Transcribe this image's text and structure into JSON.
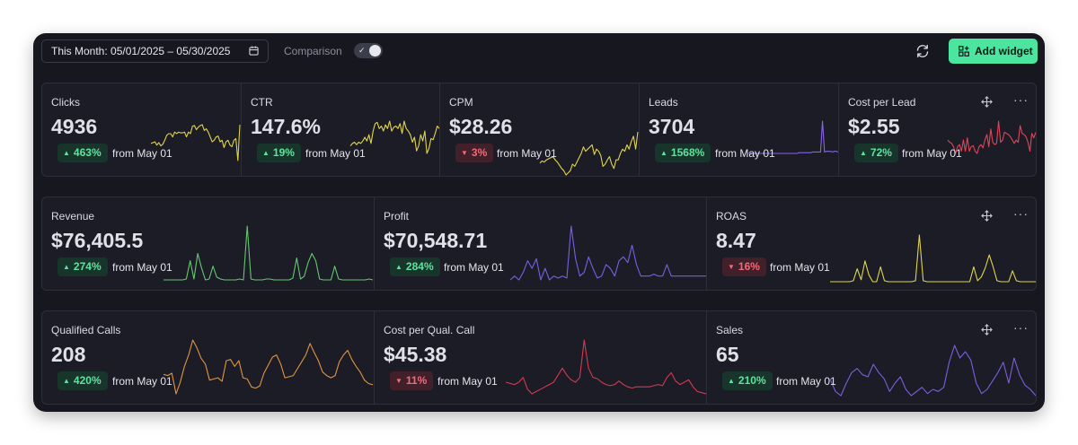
{
  "toolbar": {
    "date_range": "This Month: 05/01/2025 – 05/30/2025",
    "comparison_label": "Comparison",
    "comparison_on": true,
    "add_widget_label": "Add widget"
  },
  "colors": {
    "accent": "#4ce5a0",
    "up": "#5fe39f",
    "down": "#f36a7a",
    "yellow": "#e2d44a",
    "violet": "#8a62e8",
    "red": "#e04457",
    "green": "#63c86c",
    "orange": "#e09540"
  },
  "widgets": [
    {
      "title": "Clicks",
      "value": "4936",
      "change": "463%",
      "direction": "up",
      "from": "from May 01",
      "color": "#e2d44a",
      "series": [
        26,
        27,
        28,
        24,
        27,
        23,
        25,
        30,
        36,
        38,
        38,
        34,
        40,
        38,
        40,
        39,
        39,
        40,
        34,
        40,
        38,
        47,
        48,
        43,
        46,
        48,
        49,
        42,
        44,
        40,
        34,
        28,
        30,
        34,
        35,
        28,
        30,
        21,
        28,
        30,
        24,
        22,
        30,
        32,
        5,
        49
      ]
    },
    {
      "title": "CTR",
      "value": "147.6%",
      "change": "19%",
      "direction": "up",
      "from": "from May 01",
      "color": "#e2d44a",
      "series": [
        26,
        28,
        29,
        27,
        29,
        28,
        30,
        33,
        30,
        35,
        28,
        38,
        44,
        45,
        40,
        42,
        38,
        43,
        40,
        46,
        38,
        41,
        42,
        40,
        44,
        36,
        46,
        40,
        38,
        35,
        29,
        33,
        22,
        26,
        35,
        30,
        38,
        20,
        24,
        32,
        31,
        36,
        42,
        40
      ]
    },
    {
      "title": "CPM",
      "value": "$28.26",
      "change": "3%",
      "direction": "down",
      "from": "from May 01",
      "color": "#e2d44a",
      "series": [
        27,
        29,
        28,
        30,
        31,
        32,
        33,
        30,
        28,
        25,
        22,
        20,
        16,
        18,
        20,
        26,
        24,
        28,
        32,
        36,
        42,
        38,
        40,
        42,
        44,
        35,
        40,
        38,
        34,
        24,
        26,
        30,
        33,
        26,
        22,
        30,
        30,
        36,
        40,
        38,
        44,
        40,
        47,
        52,
        40,
        56
      ]
    },
    {
      "title": "Leads",
      "value": "3704",
      "change": "1568%",
      "direction": "up",
      "from": "from May 01",
      "color": "#8a62e8",
      "series": [
        10,
        10,
        10,
        10,
        10,
        10,
        10,
        10,
        10,
        10,
        10,
        10,
        10,
        10,
        10,
        10,
        10,
        10,
        10,
        10,
        10,
        10,
        10,
        10,
        10,
        10,
        11,
        11,
        11,
        11,
        11,
        11,
        11,
        12,
        12,
        12,
        12,
        12,
        56,
        12,
        13,
        13,
        13,
        12,
        13,
        13,
        12
      ]
    },
    {
      "title": "Cost per Lead",
      "value": "$2.55",
      "change": "72%",
      "direction": "up",
      "from": "from May 01",
      "color": "#e04457",
      "series": [
        40,
        38,
        37,
        34,
        28,
        34,
        36,
        30,
        40,
        30,
        42,
        30,
        34,
        35,
        30,
        28,
        34,
        36,
        33,
        40,
        45,
        34,
        50,
        38,
        36,
        37,
        57,
        38,
        40,
        47,
        46,
        45,
        43,
        40,
        37,
        40,
        38,
        53,
        46,
        45,
        43,
        38,
        30,
        46,
        42,
        47
      ]
    },
    {
      "title": "Revenue",
      "value": "$76,405.5",
      "change": "274%",
      "direction": "up",
      "from": "from May 01",
      "color": "#63c86c",
      "series": [
        1,
        1,
        1,
        1,
        1,
        1,
        2,
        22,
        2,
        30,
        14,
        1,
        2,
        16,
        4,
        2,
        1,
        1,
        1,
        1,
        2,
        1,
        60,
        2,
        1,
        1,
        1,
        2,
        2,
        1,
        1,
        1,
        1,
        1,
        3,
        25,
        2,
        5,
        20,
        30,
        22,
        2,
        1,
        1,
        1,
        16,
        2,
        1,
        1,
        1,
        1,
        1,
        1,
        1,
        2,
        1
      ]
    },
    {
      "title": "Profit",
      "value": "$70,548.71",
      "change": "284%",
      "direction": "up",
      "from": "from May 01",
      "color": "#7a5fe0",
      "series": [
        28,
        30,
        28,
        32,
        38,
        34,
        39,
        28,
        34,
        28,
        30,
        29,
        30,
        29,
        56,
        39,
        30,
        32,
        40,
        34,
        29,
        30,
        36,
        34,
        30,
        38,
        40,
        37,
        46,
        36,
        30,
        30,
        30,
        31,
        30,
        30,
        36,
        30,
        30,
        30,
        30,
        30,
        30,
        30,
        30,
        30
      ]
    },
    {
      "title": "ROAS",
      "value": "8.47",
      "change": "16%",
      "direction": "down",
      "from": "from May 01",
      "color": "#e2d44a",
      "series": [
        1,
        1,
        1,
        1,
        1,
        1,
        2,
        14,
        3,
        22,
        8,
        1,
        1,
        16,
        2,
        1,
        1,
        1,
        1,
        1,
        1,
        1,
        2,
        48,
        2,
        1,
        1,
        1,
        1,
        1,
        1,
        1,
        1,
        1,
        1,
        1,
        1,
        16,
        2,
        6,
        15,
        28,
        16,
        2,
        1,
        1,
        1,
        12,
        2,
        1,
        1,
        1,
        1,
        1
      ]
    },
    {
      "title": "Qualified Calls",
      "value": "208",
      "change": "420%",
      "direction": "up",
      "from": "from May 01",
      "color": "#e09540",
      "series": [
        23,
        22,
        24,
        6,
        16,
        30,
        40,
        53,
        46,
        37,
        32,
        18,
        19,
        20,
        17,
        35,
        36,
        30,
        35,
        20,
        19,
        12,
        11,
        13,
        24,
        31,
        38,
        40,
        32,
        20,
        21,
        22,
        28,
        34,
        40,
        50,
        42,
        35,
        25,
        22,
        20,
        22,
        34,
        40,
        44,
        36,
        30,
        25,
        18,
        15,
        14
      ]
    },
    {
      "title": "Cost per Qual. Call",
      "value": "$45.38",
      "change": "11%",
      "direction": "down",
      "from": "from May 01",
      "color": "#d33a4e",
      "series": [
        14,
        13,
        12,
        14,
        18,
        8,
        4,
        6,
        8,
        10,
        12,
        14,
        20,
        26,
        20,
        16,
        14,
        18,
        50,
        26,
        18,
        17,
        14,
        12,
        11,
        12,
        15,
        12,
        10,
        9,
        10,
        10,
        10,
        10,
        11,
        12,
        11,
        18,
        22,
        15,
        12,
        14,
        16,
        10,
        6,
        5,
        4
      ]
    },
    {
      "title": "Sales",
      "value": "65",
      "change": "210%",
      "direction": "up",
      "from": "from May 01",
      "color": "#7d5ee0",
      "series": [
        24,
        12,
        8,
        20,
        30,
        34,
        28,
        26,
        38,
        30,
        24,
        12,
        20,
        26,
        14,
        8,
        12,
        16,
        10,
        14,
        12,
        16,
        40,
        56,
        44,
        50,
        42,
        20,
        10,
        14,
        22,
        30,
        40,
        20,
        44,
        28,
        18,
        14,
        8
      ]
    }
  ]
}
